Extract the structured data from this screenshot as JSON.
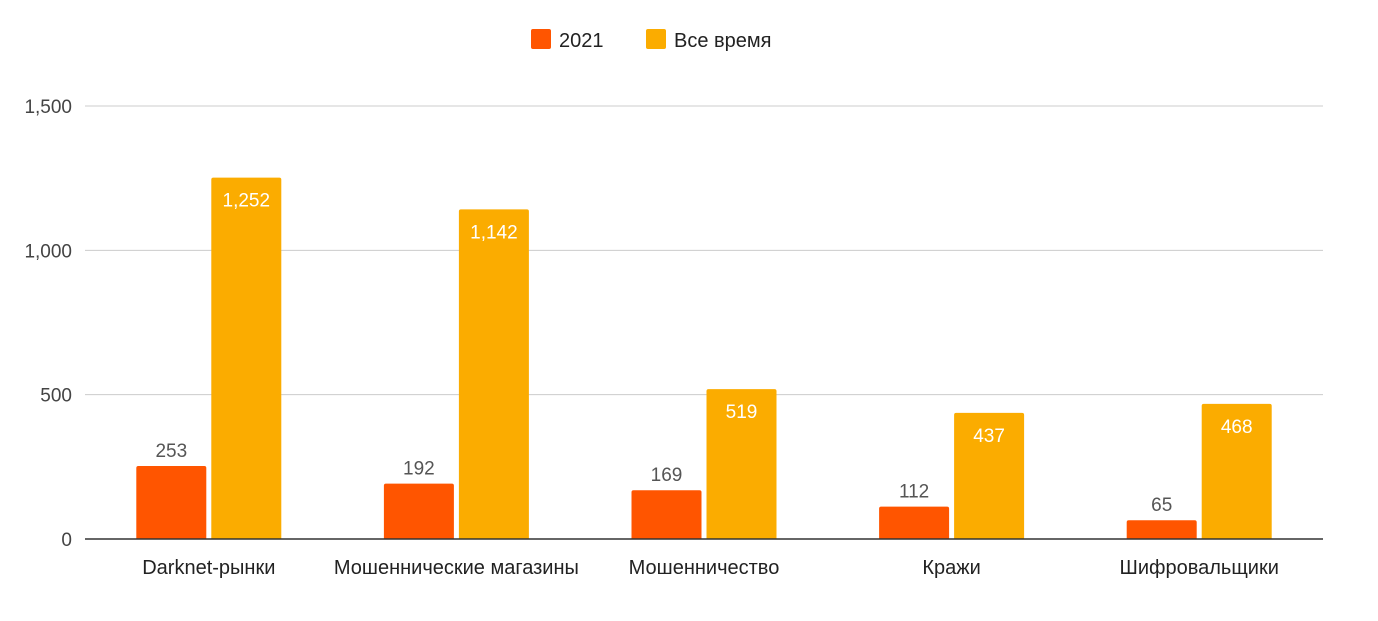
{
  "chart_data": {
    "type": "bar",
    "categories": [
      "Darknet-рынки",
      "Мошеннические магазины",
      "Мошенничество",
      "Кражи",
      "Шифровальщики"
    ],
    "series": [
      {
        "name": "2021",
        "values": [
          253,
          192,
          169,
          112,
          65
        ],
        "color": "#ff5500"
      },
      {
        "name": "Все время",
        "values": [
          1252,
          1142,
          519,
          437,
          468
        ],
        "color": "#fbac00"
      }
    ],
    "value_labels": [
      [
        "253",
        "192",
        "169",
        "112",
        "65"
      ],
      [
        "1,252",
        "1,142",
        "519",
        "437",
        "468"
      ]
    ],
    "yticks": [
      0,
      500,
      1000,
      1500
    ],
    "ytick_labels": [
      "0",
      "500",
      "1,000",
      "1,500"
    ],
    "ylim": [
      0,
      1500
    ],
    "legend_position": "top-center",
    "grid": true,
    "gridline_color": "#cccccc",
    "axis_color": "#333333"
  }
}
